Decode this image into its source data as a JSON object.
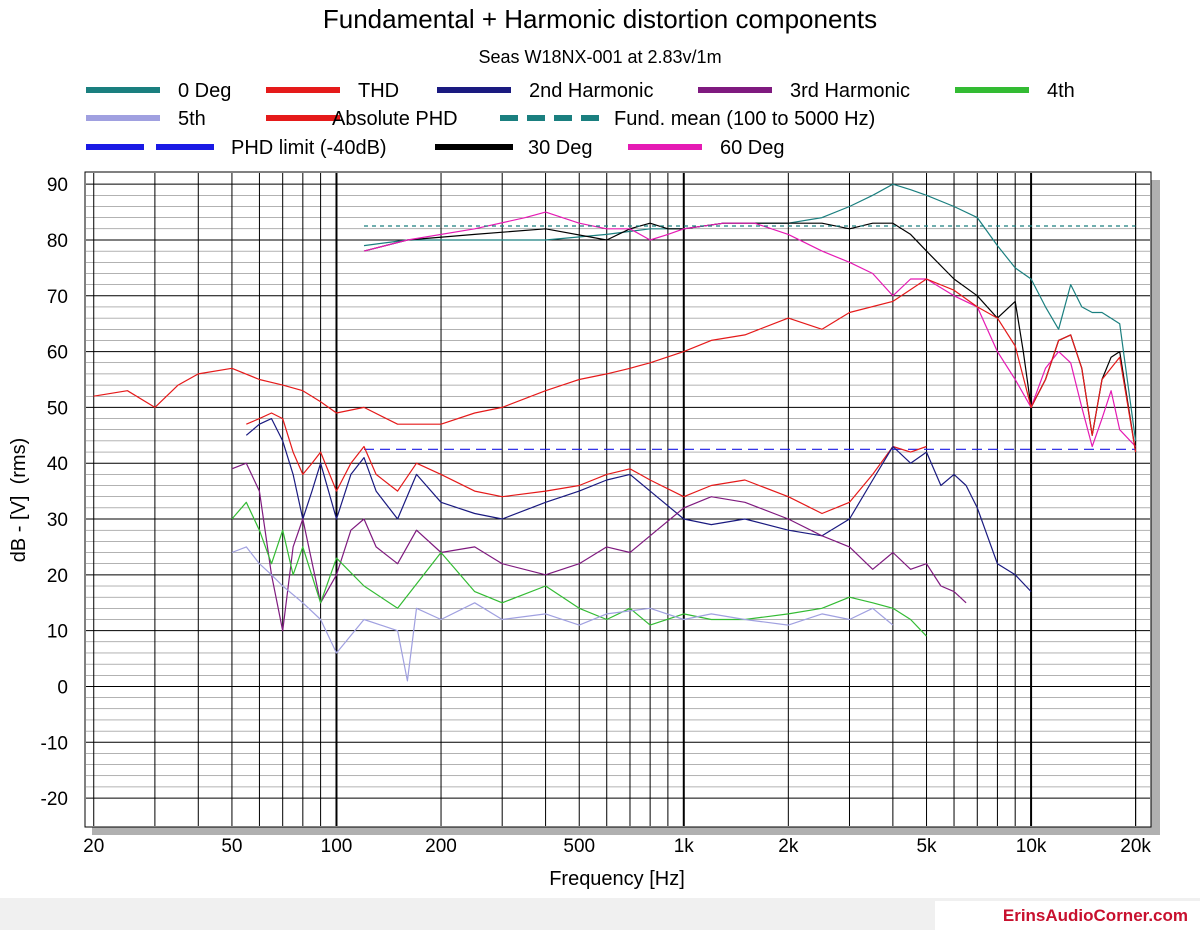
{
  "chart_data": {
    "type": "line",
    "title": "Fundamental + Harmonic distortion components",
    "subtitle": "Seas W18NX-001 at 2.83v/1m",
    "xlabel": "Frequency [Hz]",
    "ylabel": "dB - [V]  (rms)",
    "x_scale": "log",
    "xlim": [
      19,
      22000
    ],
    "ylim": [
      -25,
      92
    ],
    "grid": true,
    "x_tick_labels": [
      {
        "value": 20,
        "label": "20"
      },
      {
        "value": 50,
        "label": "50"
      },
      {
        "value": 100,
        "label": "100"
      },
      {
        "value": 200,
        "label": "200"
      },
      {
        "value": 500,
        "label": "500"
      },
      {
        "value": 1000,
        "label": "1k"
      },
      {
        "value": 2000,
        "label": "2k"
      },
      {
        "value": 5000,
        "label": "5k"
      },
      {
        "value": 10000,
        "label": "10k"
      },
      {
        "value": 20000,
        "label": "20k"
      }
    ],
    "y_ticks": [
      90,
      80,
      70,
      60,
      50,
      40,
      30,
      20,
      10,
      0,
      -10,
      -20
    ],
    "legend": [
      {
        "name": "0 Deg",
        "color": "#1a7f7f",
        "dash": false
      },
      {
        "name": "THD",
        "color": "#e51a1a",
        "dash": false
      },
      {
        "name": "2nd Harmonic",
        "color": "#1a1a80",
        "dash": false
      },
      {
        "name": "3rd Harmonic",
        "color": "#7f1a7f",
        "dash": false
      },
      {
        "name": "4th",
        "color": "#33bb33",
        "dash": false
      },
      {
        "name": "5th",
        "color": "#a0a0e0",
        "dash": false
      },
      {
        "name": "Absolute PHD",
        "color": "#e51a1a",
        "dash": false
      },
      {
        "name": "Fund. mean (100 to 5000 Hz)",
        "color": "#1a7f7f",
        "dash": true
      },
      {
        "name": "PHD limit (-40dB)",
        "color": "#1a1ae5",
        "dash": true
      },
      {
        "name": "30 Deg",
        "color": "#000000",
        "dash": false
      },
      {
        "name": "60 Deg",
        "color": "#e51ab4",
        "dash": false
      }
    ],
    "series": [
      {
        "name": "0 Deg",
        "color": "#1a7f7f",
        "x": [
          120,
          160,
          250,
          400,
          600,
          800,
          1000,
          1300,
          1600,
          2000,
          2500,
          3000,
          3500,
          4000,
          4500,
          5000,
          6000,
          7000,
          8000,
          9000,
          10000,
          11000,
          12000,
          13000,
          14000,
          15000,
          16000,
          18000,
          20000
        ],
        "y": [
          79,
          80,
          80,
          80,
          81,
          82,
          82,
          83,
          83,
          83,
          84,
          86,
          88,
          90,
          89,
          88,
          86,
          84,
          79,
          75,
          73,
          68,
          64,
          72,
          68,
          67,
          67,
          65,
          44
        ]
      },
      {
        "name": "30 Deg",
        "color": "#000000",
        "x": [
          120,
          160,
          250,
          400,
          600,
          700,
          800,
          900,
          1000,
          1300,
          1600,
          2000,
          2500,
          3000,
          3500,
          4000,
          4500,
          5000,
          6000,
          7000,
          8000,
          9000,
          9500,
          10000,
          11000,
          12000,
          13000,
          14000,
          15000,
          16000,
          17000,
          18000,
          20000
        ],
        "y": [
          78,
          80,
          81,
          82,
          80,
          82,
          83,
          82,
          82,
          83,
          83,
          83,
          83,
          82,
          83,
          83,
          81,
          78,
          73,
          70,
          66,
          69,
          60,
          50,
          55,
          62,
          63,
          57,
          45,
          55,
          59,
          60,
          42
        ]
      },
      {
        "name": "60 Deg",
        "color": "#e51ab4",
        "x": [
          120,
          160,
          250,
          350,
          400,
          500,
          600,
          700,
          800,
          900,
          1000,
          1300,
          1600,
          2000,
          2500,
          3000,
          3500,
          4000,
          4500,
          5000,
          6000,
          7000,
          8000,
          9000,
          10000,
          11000,
          12000,
          13000,
          14000,
          15000,
          16000,
          17000,
          18000,
          20000
        ],
        "y": [
          78,
          80,
          82,
          84,
          85,
          83,
          82,
          82,
          80,
          81,
          82,
          83,
          83,
          81,
          78,
          76,
          74,
          70,
          73,
          73,
          70,
          68,
          60,
          55,
          50,
          57,
          60,
          58,
          50,
          43,
          48,
          53,
          46,
          43
        ]
      },
      {
        "name": "Fund. mean (100 to 5000 Hz)",
        "color": "#1a7f7f",
        "dash": true,
        "x": [
          120,
          20000
        ],
        "y": [
          82.5,
          82.5
        ]
      },
      {
        "name": "PHD limit (-40dB)",
        "color": "#1a1ae5",
        "dash": true,
        "x": [
          120,
          20000
        ],
        "y": [
          42.5,
          42.5
        ]
      },
      {
        "name": "Absolute PHD",
        "color": "#e51a1a",
        "x": [
          20,
          25,
          30,
          35,
          40,
          50,
          60,
          70,
          80,
          90,
          100,
          120,
          150,
          200,
          250,
          300,
          400,
          500,
          600,
          700,
          800,
          1000,
          1200,
          1500,
          2000,
          2500,
          3000,
          4000,
          5000,
          6000,
          7000,
          8000,
          9000,
          10000,
          11000,
          12000,
          13000,
          14000,
          15000,
          16000,
          18000,
          20000
        ],
        "y": [
          52,
          53,
          50,
          54,
          56,
          57,
          55,
          54,
          53,
          51,
          49,
          50,
          47,
          47,
          49,
          50,
          53,
          55,
          56,
          57,
          58,
          60,
          62,
          63,
          66,
          64,
          67,
          69,
          73,
          71,
          68,
          66,
          61,
          50,
          55,
          62,
          63,
          57,
          45,
          55,
          59,
          42
        ]
      },
      {
        "name": "THD",
        "color": "#e51a1a",
        "x": [
          55,
          60,
          65,
          70,
          75,
          80,
          85,
          90,
          100,
          110,
          120,
          130,
          150,
          170,
          200,
          250,
          300,
          400,
          500,
          600,
          700,
          800,
          1000,
          1200,
          1500,
          2000,
          2500,
          3000,
          3500,
          4000,
          4500,
          5000
        ],
        "y": [
          47,
          48,
          49,
          48,
          42,
          38,
          40,
          42,
          35,
          40,
          43,
          38,
          35,
          40,
          38,
          35,
          34,
          35,
          36,
          38,
          39,
          37,
          34,
          36,
          37,
          34,
          31,
          33,
          38,
          43,
          42,
          43
        ]
      },
      {
        "name": "2nd Harmonic",
        "color": "#1a1a80",
        "x": [
          55,
          60,
          65,
          70,
          75,
          80,
          85,
          90,
          100,
          110,
          120,
          130,
          150,
          170,
          200,
          250,
          300,
          400,
          500,
          600,
          700,
          800,
          1000,
          1200,
          1500,
          2000,
          2500,
          3000,
          3500,
          4000,
          4500,
          5000,
          5500,
          6000,
          6500,
          7000,
          8000,
          9000,
          10000
        ],
        "y": [
          45,
          47,
          48,
          44,
          38,
          30,
          35,
          40,
          30,
          38,
          41,
          35,
          30,
          38,
          33,
          31,
          30,
          33,
          35,
          37,
          38,
          35,
          30,
          29,
          30,
          28,
          27,
          30,
          37,
          43,
          40,
          42,
          36,
          38,
          36,
          32,
          22,
          20,
          17
        ]
      },
      {
        "name": "3rd Harmonic",
        "color": "#7f1a7f",
        "x": [
          50,
          55,
          60,
          65,
          70,
          75,
          80,
          90,
          100,
          110,
          120,
          130,
          150,
          170,
          200,
          250,
          300,
          400,
          500,
          600,
          700,
          800,
          1000,
          1200,
          1500,
          2000,
          2500,
          3000,
          3500,
          4000,
          4500,
          5000,
          5500,
          6000,
          6500
        ],
        "y": [
          39,
          40,
          35,
          20,
          10,
          25,
          30,
          15,
          20,
          28,
          30,
          25,
          22,
          28,
          24,
          25,
          22,
          20,
          22,
          25,
          24,
          27,
          32,
          34,
          33,
          30,
          27,
          25,
          21,
          24,
          21,
          22,
          18,
          17,
          15
        ]
      },
      {
        "name": "4th",
        "color": "#33bb33",
        "x": [
          50,
          55,
          60,
          65,
          70,
          75,
          80,
          90,
          100,
          120,
          150,
          200,
          250,
          300,
          400,
          500,
          600,
          700,
          800,
          1000,
          1200,
          1500,
          2000,
          2500,
          3000,
          3500,
          4000,
          4500,
          5000
        ],
        "y": [
          30,
          33,
          28,
          22,
          28,
          20,
          25,
          15,
          23,
          18,
          14,
          24,
          17,
          15,
          18,
          14,
          12,
          14,
          11,
          13,
          12,
          12,
          13,
          14,
          16,
          15,
          14,
          12,
          9
        ]
      },
      {
        "name": "5th",
        "color": "#a0a0e0",
        "x": [
          50,
          55,
          60,
          65,
          70,
          80,
          90,
          100,
          120,
          150,
          160,
          170,
          200,
          250,
          300,
          400,
          500,
          600,
          800,
          1000,
          1200,
          1500,
          2000,
          2500,
          3000,
          3500,
          4000
        ],
        "y": [
          24,
          25,
          22,
          20,
          18,
          15,
          12,
          6,
          12,
          10,
          1,
          14,
          12,
          15,
          12,
          13,
          11,
          13,
          14,
          12,
          13,
          12,
          11,
          13,
          12,
          14,
          11
        ]
      }
    ]
  },
  "footer": {
    "watermark": "ErinsAudioCorner.com"
  }
}
